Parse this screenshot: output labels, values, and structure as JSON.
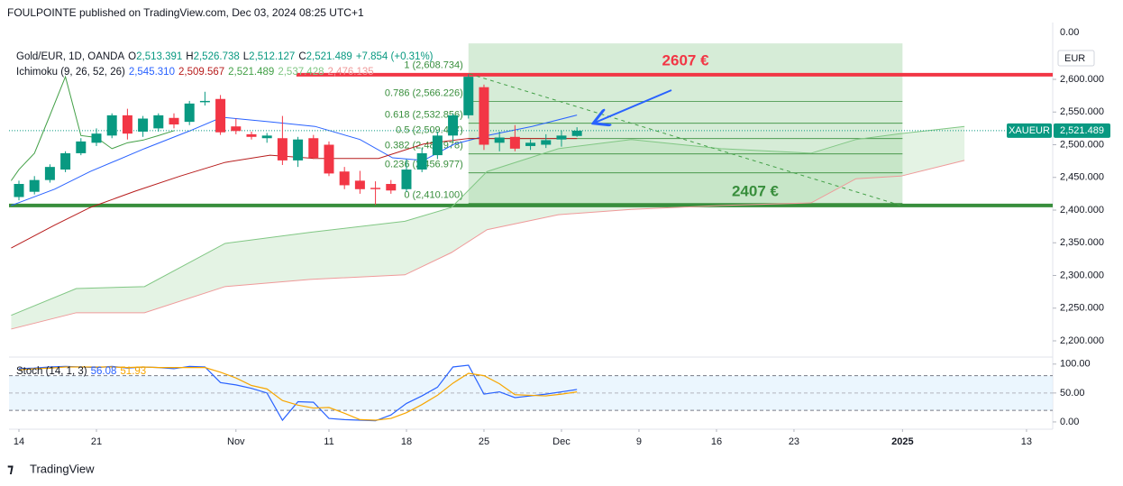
{
  "header": "FOULPOINTE published on TradingView.com, Dec 03, 2024 08:25 UTC+1",
  "footer": "TradingView",
  "chart_data": [
    {
      "type": "candlestick",
      "title": "Gold/EUR, 1D, OANDA",
      "legend_ohlc": [
        {
          "key": "O",
          "value": "2,513.391"
        },
        {
          "key": "H",
          "value": "2,526.738"
        },
        {
          "key": "L",
          "value": "2,512.127"
        },
        {
          "key": "C",
          "value": "2,521.489"
        }
      ],
      "change": "+7.854 (+0.31%)",
      "up_color": "#089981",
      "down_color": "#f23645",
      "open": [
        2420,
        2428,
        2446,
        2462,
        2487,
        2503,
        2514,
        2545,
        2520,
        2525,
        2541,
        2535,
        2565,
        2570,
        2528,
        2516,
        2510,
        2510,
        2476,
        2510,
        2500,
        2459,
        2445,
        2434,
        2440,
        2432,
        2462,
        2484,
        2514,
        2545,
        2588,
        2503,
        2512,
        2498,
        2500,
        2508,
        2513.391
      ],
      "high": [
        2445,
        2452,
        2470,
        2490,
        2510,
        2525,
        2548,
        2555,
        2544,
        2548,
        2548,
        2567,
        2581,
        2576,
        2540,
        2520,
        2518,
        2544,
        2512,
        2515,
        2505,
        2466,
        2460,
        2444,
        2446,
        2478,
        2495,
        2520,
        2548,
        2608,
        2592,
        2520,
        2530,
        2508,
        2516,
        2522,
        2526.738
      ],
      "low": [
        2415,
        2424,
        2442,
        2458,
        2484,
        2498,
        2510,
        2508,
        2512,
        2520,
        2525,
        2530,
        2560,
        2515,
        2516,
        2508,
        2503,
        2469,
        2466,
        2478,
        2452,
        2432,
        2425,
        2408,
        2425,
        2428,
        2458,
        2478,
        2505,
        2540,
        2492,
        2490,
        2490,
        2492,
        2495,
        2497,
        2512.127
      ],
      "close": [
        2440,
        2446,
        2466,
        2487,
        2505,
        2517,
        2545,
        2517,
        2540,
        2545,
        2531,
        2563,
        2567,
        2519,
        2521,
        2512,
        2514,
        2476,
        2508,
        2480,
        2456,
        2438,
        2432,
        2432,
        2430,
        2462,
        2487,
        2514,
        2545,
        2604,
        2500,
        2511,
        2494,
        2503,
        2507,
        2514,
        2521.489
      ],
      "xlim": [
        -0.64,
        66.69
      ],
      "xticks": [
        {
          "value": 0,
          "label": "14"
        },
        {
          "value": 5,
          "label": "21"
        },
        {
          "value": 14,
          "label": "Nov"
        },
        {
          "value": 20,
          "label": "11"
        },
        {
          "value": 25,
          "label": "18"
        },
        {
          "value": 30,
          "label": "25"
        },
        {
          "value": 35,
          "label": "Dec"
        },
        {
          "value": 40,
          "label": "9"
        },
        {
          "value": 45,
          "label": "16"
        },
        {
          "value": 50,
          "label": "23"
        },
        {
          "value": 57,
          "label": "2025"
        },
        {
          "value": 65,
          "label": "13"
        }
      ],
      "ylim": [
        2176.55,
        2686.9
      ],
      "yticks": [
        {
          "value": 2600,
          "label": "2,600.000"
        },
        {
          "value": 2550,
          "label": "2,550.000"
        },
        {
          "value": 2500,
          "label": "2,500.000"
        },
        {
          "value": 2450,
          "label": "2,450.000"
        },
        {
          "value": 2400,
          "label": "2,400.000"
        },
        {
          "value": 2350,
          "label": "2,350.000"
        },
        {
          "value": 2300,
          "label": "2,300.000"
        },
        {
          "value": 2250,
          "label": "2,250.000"
        },
        {
          "value": 2200,
          "label": "2,200.000"
        }
      ],
      "top_label": "0.00",
      "currency": "EUR",
      "price_tag": {
        "symbol": "XAUEUR",
        "value": 2521.489,
        "label": "2,521.489"
      },
      "ichimoku": {
        "name": "Ichimoku (9, 26, 52, 26)",
        "cloud_fill": "#a5d6a7",
        "lines": [
          {
            "legend": "2,545.310",
            "color": "#2962ff",
            "x": [
              -0.5,
              2.3,
              4.6,
              8.1,
              11,
              13.1,
              16.2,
              19.1,
              22,
              24.1,
              26.1,
              28.1,
              30.2,
              33.1,
              36
            ],
            "values": [
              2407,
              2432,
              2459,
              2494,
              2521,
              2542,
              2535,
              2528,
              2508,
              2480,
              2476,
              2501,
              2514,
              2528,
              2545.31
            ]
          },
          {
            "legend": "2,509.567",
            "color": "#b71c1c",
            "x": [
              -0.5,
              2.3,
              4.6,
              7.5,
              10.4,
              13.3,
              16.2,
              19.1,
              23.2,
              26.1,
              29,
              36
            ],
            "values": [
              2342,
              2377,
              2404,
              2429,
              2452,
              2473,
              2484,
              2479,
              2479,
              2501,
              2509.567,
              2509.567
            ]
          },
          {
            "legend": "2,521.489",
            "color": "#43a047",
            "x": [
              -0.5,
              0,
              1,
              2,
              3,
              4,
              5,
              6,
              7,
              8,
              9,
              10
            ],
            "values": [
              2445,
              2462,
              2487,
              2545,
              2604,
              2514,
              2511,
              2494,
              2503,
              2507,
              2514,
              2521.489
            ]
          },
          {
            "legend": "2,537.428",
            "color": "#81c784",
            "x": [
              -0.5,
              3.7,
              8.1,
              13.3,
              18.8,
              24.9,
              27.9,
              30.2,
              34.8,
              39.5,
              45.3,
              51.1,
              54,
              56.9,
              61
            ],
            "values": [
              2239,
              2280,
              2283,
              2349,
              2366,
              2383,
              2404,
              2459,
              2494,
              2508,
              2494,
              2487,
              2508,
              2517,
              2528
            ]
          },
          {
            "legend": "2,476.135",
            "color": "#ef9a9a",
            "x": [
              -0.5,
              3.7,
              8.1,
              13.3,
              18.8,
              24.9,
              27.9,
              30.2,
              34.8,
              39.5,
              45.3,
              51.1,
              54,
              56.9,
              61
            ],
            "values": [
              2218,
              2243,
              2243,
              2283,
              2294,
              2301,
              2335,
              2370,
              2393,
              2401,
              2407,
              2411,
              2448,
              2452,
              2476
            ]
          }
        ]
      },
      "fib": {
        "x_start": 29,
        "x_end": 57,
        "top": 2655,
        "fill": "#c8e6c9",
        "color": "#388e3c",
        "levels": [
          {
            "label": "1 (2,608.734)",
            "value": 2608.734
          },
          {
            "label": "0.786 (2,566.226)",
            "value": 2566.226
          },
          {
            "label": "0.618 (2,532.856)",
            "value": 2532.856
          },
          {
            "label": "0.5 (2,509.417)",
            "value": 2509.417
          },
          {
            "label": "0.382 (2,485.978)",
            "value": 2485.978
          },
          {
            "label": "0.236 (2,456.977)",
            "value": 2456.977
          },
          {
            "label": "0 (2,410.100)",
            "value": 2410.1
          }
        ]
      },
      "levels": [
        {
          "label": "2607 €",
          "value": 2607,
          "color": "#f23645",
          "x_start": 17.9
        },
        {
          "label": "2407 €",
          "value": 2407,
          "color": "#388e3c",
          "x_start": -0.64
        }
      ]
    },
    {
      "type": "line",
      "title": "Stoch (14, 1, 3)",
      "series": [
        {
          "name": "56.08",
          "color": "#2962ff",
          "values": [
            92,
            93,
            95,
            96,
            95,
            94,
            96,
            93,
            95,
            94,
            92,
            96,
            95,
            68,
            64,
            58,
            50,
            3,
            35,
            34,
            6,
            4,
            3,
            2,
            12,
            32,
            45,
            60,
            95,
            98,
            48,
            52,
            42,
            45,
            48,
            52,
            56.08
          ]
        },
        {
          "name": "51.93",
          "color": "#f7a600",
          "values": [
            90,
            92,
            93,
            95,
            95,
            95,
            95,
            94,
            95,
            94,
            94,
            94,
            94,
            86,
            76,
            63,
            57,
            37,
            29,
            24,
            25,
            15,
            4,
            3,
            6,
            16,
            30,
            46,
            67,
            84,
            80,
            66,
            47,
            46,
            45,
            48,
            51.93
          ]
        }
      ],
      "ylim": [
        -11,
        109
      ],
      "yticks": [
        {
          "value": 100,
          "label": "100.00"
        },
        {
          "value": 50,
          "label": "50.00"
        },
        {
          "value": 0,
          "label": "0.00"
        }
      ],
      "bands": [
        20,
        80
      ],
      "band_fill": "#e3f2fd"
    }
  ]
}
